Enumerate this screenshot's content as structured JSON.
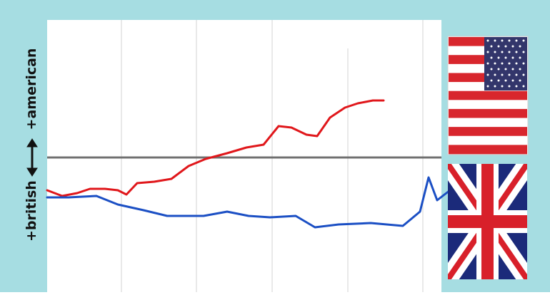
{
  "colors": {
    "background": "#a6dde2",
    "plot_bg": "#ffffff",
    "grid": "#e2e2e2",
    "zero_line": "#707070",
    "american_line": "#e0171b",
    "british_line": "#1b4fc4"
  },
  "chart_data": {
    "type": "line",
    "title": "",
    "xlabel": "",
    "ylabel_positive": "+american",
    "ylabel_negative": "+british",
    "ylim": [
      -100,
      100
    ],
    "grid": "vertical",
    "legend": "flag icons on the right: US flag (top), UK flag (bottom)",
    "series": [
      {
        "color": "#e0171b",
        "points": [
          [
            0,
            -23
          ],
          [
            7,
            -27
          ],
          [
            14,
            -25
          ],
          [
            20,
            -22
          ],
          [
            27,
            -22
          ],
          [
            33,
            -23
          ],
          [
            37,
            -26
          ],
          [
            42,
            -18
          ],
          [
            50,
            -17
          ],
          [
            58,
            -15
          ],
          [
            66,
            -6
          ],
          [
            74,
            -1
          ],
          [
            84,
            3
          ],
          [
            93,
            7
          ],
          [
            101,
            9
          ],
          [
            108,
            22
          ],
          [
            114,
            21
          ],
          [
            121,
            16
          ],
          [
            126,
            15
          ],
          [
            132,
            28
          ],
          [
            139,
            35
          ],
          [
            145,
            38
          ],
          [
            152,
            40
          ],
          [
            157,
            40
          ]
        ]
      },
      {
        "color": "#1b4fc4",
        "points": [
          [
            0,
            -28
          ],
          [
            10,
            -28
          ],
          [
            23,
            -27
          ],
          [
            33,
            -33
          ],
          [
            45,
            -37
          ],
          [
            56,
            -41
          ],
          [
            68,
            -41
          ],
          [
            73,
            -41
          ],
          [
            84,
            -38
          ],
          [
            94,
            -41
          ],
          [
            104,
            -42
          ],
          [
            116,
            -41
          ],
          [
            125,
            -49
          ],
          [
            136,
            -47
          ],
          [
            151,
            -46
          ],
          [
            166,
            -48
          ],
          [
            174,
            -38
          ],
          [
            178,
            -14
          ],
          [
            182,
            -30
          ],
          [
            188,
            -23
          ]
        ]
      }
    ]
  },
  "flags": [
    {
      "country": "United States",
      "icon": "us-flag-icon"
    },
    {
      "country": "United Kingdom",
      "icon": "uk-flag-icon"
    }
  ]
}
